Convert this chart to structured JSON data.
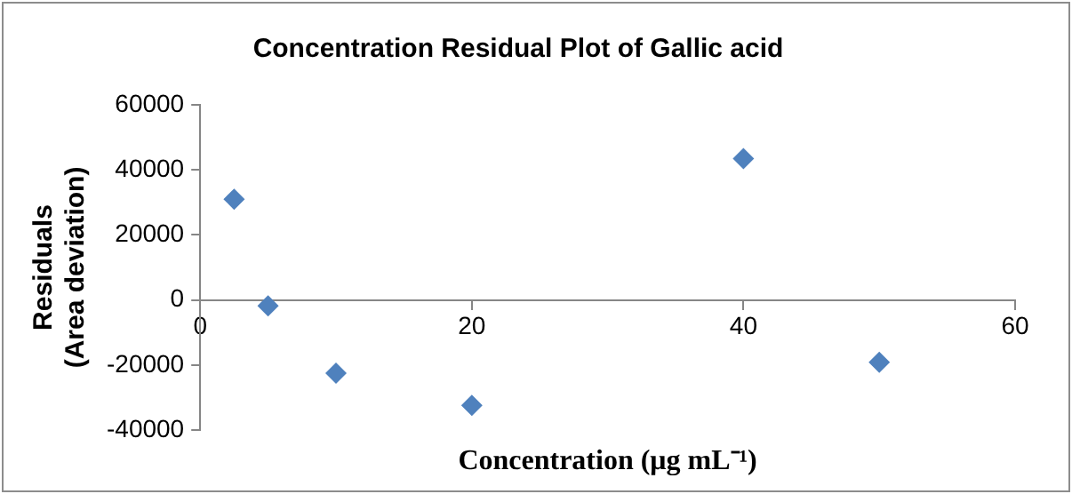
{
  "chart_data": {
    "type": "scatter",
    "title": "Concentration Residual Plot of Gallic acid",
    "xlabel": "Concentration (μg mL⁻¹)",
    "ylabel": "Residuals\n(Area deviation)",
    "series": [
      {
        "color": "#4f81bd",
        "x": [
          2.5,
          5,
          10,
          20,
          40,
          50
        ],
        "values": [
          31000,
          -1800,
          -22500,
          -32400,
          43500,
          -19200
        ]
      }
    ],
    "xlim": [
      0,
      60
    ],
    "xticks": [
      0,
      20,
      40,
      60
    ],
    "ylim": [
      -40000,
      60000
    ],
    "yticks": [
      -40000,
      -20000,
      0,
      20000,
      40000,
      60000
    ],
    "grid": false,
    "legend": false,
    "marker": "diamond"
  }
}
